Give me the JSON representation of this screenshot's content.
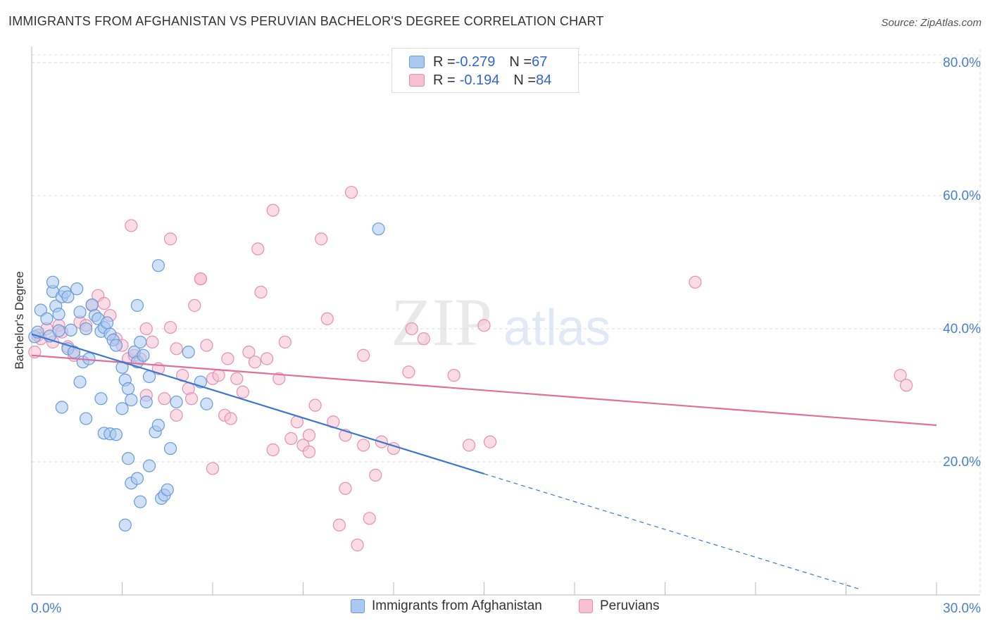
{
  "header": {
    "title": "IMMIGRANTS FROM AFGHANISTAN VS PERUVIAN BACHELOR'S DEGREE CORRELATION CHART",
    "source": "Source: ZipAtlas.com"
  },
  "legend_top": {
    "rows": [
      {
        "r_label": "R = ",
        "r_value": "-0.279",
        "n_label": "N = ",
        "n_value": "67"
      },
      {
        "r_label": "R = ",
        "r_value": "-0.194",
        "n_label": "N = ",
        "n_value": "84"
      }
    ]
  },
  "legend_bottom": {
    "items": [
      "Immigrants from Afghanistan",
      "Peruvians"
    ]
  },
  "watermark": {
    "zip": "ZIP",
    "atlas": "atlas"
  },
  "colors": {
    "blue_fill": "#aac8f0",
    "blue_stroke": "#6a9ad8",
    "blue_line": "#3a78d0",
    "pink_fill": "#f6c0d2",
    "pink_stroke": "#e690b0",
    "pink_line": "#e0709a",
    "tick_label": "#4a7fd0",
    "grid": "#dddddd"
  },
  "chart_data": {
    "type": "scatter",
    "xlabel": "",
    "ylabel": "Bachelor's Degree",
    "xlim": [
      0,
      30
    ],
    "ylim": [
      0,
      82
    ],
    "x_tick_labels": [
      "0.0%",
      "30.0%"
    ],
    "y_ticks": [
      20,
      40,
      60,
      80
    ],
    "y_tick_labels": [
      "20.0%",
      "40.0%",
      "60.0%",
      "80.0%"
    ],
    "grid": true,
    "series": [
      {
        "name": "Immigrants from Afghanistan",
        "color": "blue",
        "points": [
          [
            0.1,
            38.8
          ],
          [
            0.2,
            39.5
          ],
          [
            0.3,
            42.8
          ],
          [
            0.5,
            41.5
          ],
          [
            0.6,
            38.9
          ],
          [
            0.7,
            45.6
          ],
          [
            0.7,
            47.0
          ],
          [
            0.8,
            43.4
          ],
          [
            0.9,
            42.2
          ],
          [
            1.0,
            44.8
          ],
          [
            1.1,
            45.5
          ],
          [
            0.9,
            39.7
          ],
          [
            1.2,
            44.8
          ],
          [
            1.2,
            37.0
          ],
          [
            1.3,
            39.8
          ],
          [
            1.4,
            36.5
          ],
          [
            1.5,
            46.0
          ],
          [
            1.6,
            42.5
          ],
          [
            1.7,
            35.0
          ],
          [
            1.8,
            40.0
          ],
          [
            1.9,
            35.5
          ],
          [
            2.0,
            43.6
          ],
          [
            2.1,
            42.0
          ],
          [
            2.2,
            41.5
          ],
          [
            2.3,
            39.6
          ],
          [
            2.4,
            40.2
          ],
          [
            2.5,
            40.9
          ],
          [
            2.6,
            39.2
          ],
          [
            2.7,
            38.3
          ],
          [
            2.8,
            37.5
          ],
          [
            3.0,
            34.2
          ],
          [
            3.1,
            32.3
          ],
          [
            3.2,
            31.0
          ],
          [
            3.3,
            29.3
          ],
          [
            3.4,
            36.5
          ],
          [
            3.5,
            35.0
          ],
          [
            3.6,
            38.0
          ],
          [
            3.7,
            36.0
          ],
          [
            3.8,
            29.0
          ],
          [
            3.9,
            32.8
          ],
          [
            1.0,
            28.2
          ],
          [
            1.6,
            32.0
          ],
          [
            2.3,
            29.5
          ],
          [
            1.8,
            26.5
          ],
          [
            2.4,
            24.3
          ],
          [
            2.6,
            24.2
          ],
          [
            2.8,
            24.1
          ],
          [
            3.0,
            28.0
          ],
          [
            3.2,
            20.5
          ],
          [
            3.3,
            16.8
          ],
          [
            3.5,
            17.5
          ],
          [
            3.6,
            14.0
          ],
          [
            3.9,
            19.4
          ],
          [
            4.1,
            24.5
          ],
          [
            4.2,
            25.5
          ],
          [
            4.3,
            14.5
          ],
          [
            4.4,
            15.0
          ],
          [
            4.5,
            15.8
          ],
          [
            3.1,
            10.5
          ],
          [
            4.2,
            49.5
          ],
          [
            3.5,
            43.5
          ],
          [
            4.6,
            22.0
          ],
          [
            4.8,
            29.0
          ],
          [
            5.2,
            36.5
          ],
          [
            5.6,
            32.0
          ],
          [
            5.8,
            28.7
          ],
          [
            11.5,
            55.0
          ]
        ]
      },
      {
        "name": "Peruvians",
        "color": "pink",
        "points": [
          [
            0.1,
            36.5
          ],
          [
            0.2,
            39.0
          ],
          [
            0.3,
            38.5
          ],
          [
            0.5,
            40.0
          ],
          [
            0.7,
            38.0
          ],
          [
            0.9,
            40.5
          ],
          [
            1.0,
            39.5
          ],
          [
            1.2,
            37.3
          ],
          [
            1.4,
            36.0
          ],
          [
            1.6,
            41.0
          ],
          [
            1.8,
            40.5
          ],
          [
            2.0,
            43.5
          ],
          [
            2.2,
            45.0
          ],
          [
            2.4,
            43.8
          ],
          [
            2.6,
            42.0
          ],
          [
            2.8,
            38.5
          ],
          [
            3.0,
            37.5
          ],
          [
            3.2,
            35.5
          ],
          [
            3.4,
            36.0
          ],
          [
            3.6,
            35.5
          ],
          [
            3.8,
            30.0
          ],
          [
            4.0,
            38.0
          ],
          [
            4.2,
            34.0
          ],
          [
            4.4,
            29.5
          ],
          [
            4.6,
            40.2
          ],
          [
            4.8,
            37.0
          ],
          [
            5.0,
            33.0
          ],
          [
            5.2,
            31.0
          ],
          [
            5.4,
            43.5
          ],
          [
            5.6,
            47.5
          ],
          [
            5.8,
            37.5
          ],
          [
            6.0,
            32.5
          ],
          [
            6.2,
            33.0
          ],
          [
            6.4,
            27.0
          ],
          [
            6.6,
            26.5
          ],
          [
            6.8,
            32.5
          ],
          [
            7.0,
            30.5
          ],
          [
            7.2,
            36.5
          ],
          [
            7.4,
            35.0
          ],
          [
            7.6,
            45.5
          ],
          [
            7.8,
            35.5
          ],
          [
            8.0,
            21.8
          ],
          [
            8.2,
            32.5
          ],
          [
            8.4,
            38.0
          ],
          [
            8.6,
            23.5
          ],
          [
            8.8,
            26.0
          ],
          [
            9.0,
            22.5
          ],
          [
            9.2,
            21.5
          ],
          [
            9.4,
            28.5
          ],
          [
            9.6,
            53.5
          ],
          [
            9.8,
            41.5
          ],
          [
            10.0,
            26.0
          ],
          [
            10.2,
            10.5
          ],
          [
            10.4,
            16.0
          ],
          [
            10.6,
            60.5
          ],
          [
            10.8,
            7.5
          ],
          [
            11.0,
            22.5
          ],
          [
            11.2,
            11.5
          ],
          [
            11.4,
            18.0
          ],
          [
            12.0,
            22.0
          ],
          [
            12.5,
            33.5
          ],
          [
            13.0,
            38.5
          ],
          [
            14.0,
            33.0
          ],
          [
            14.5,
            22.5
          ],
          [
            15.0,
            40.5
          ],
          [
            7.5,
            52.0
          ],
          [
            6.0,
            19.0
          ],
          [
            5.6,
            47.5
          ],
          [
            4.6,
            53.5
          ],
          [
            3.3,
            55.5
          ],
          [
            4.8,
            27.0
          ],
          [
            8.0,
            57.8
          ],
          [
            9.2,
            24.0
          ],
          [
            10.4,
            24.0
          ],
          [
            11.0,
            36.0
          ],
          [
            11.6,
            23.0
          ],
          [
            12.6,
            40.0
          ],
          [
            15.2,
            23.0
          ],
          [
            22.0,
            47.0
          ],
          [
            28.8,
            33.0
          ],
          [
            29.0,
            31.5
          ],
          [
            6.5,
            35.5
          ],
          [
            5.3,
            29.5
          ],
          [
            3.8,
            40.0
          ]
        ]
      }
    ],
    "trend_lines": [
      {
        "series": "Immigrants from Afghanistan",
        "x": [
          0,
          15.0
        ],
        "y": [
          39.2,
          18.2
        ],
        "dashed_extension_x": [
          15.0,
          27.5
        ],
        "dashed_extension_y": [
          18.2,
          0.8
        ]
      },
      {
        "series": "Peruvians",
        "x": [
          0,
          30
        ],
        "y": [
          36.0,
          25.5
        ]
      }
    ]
  }
}
